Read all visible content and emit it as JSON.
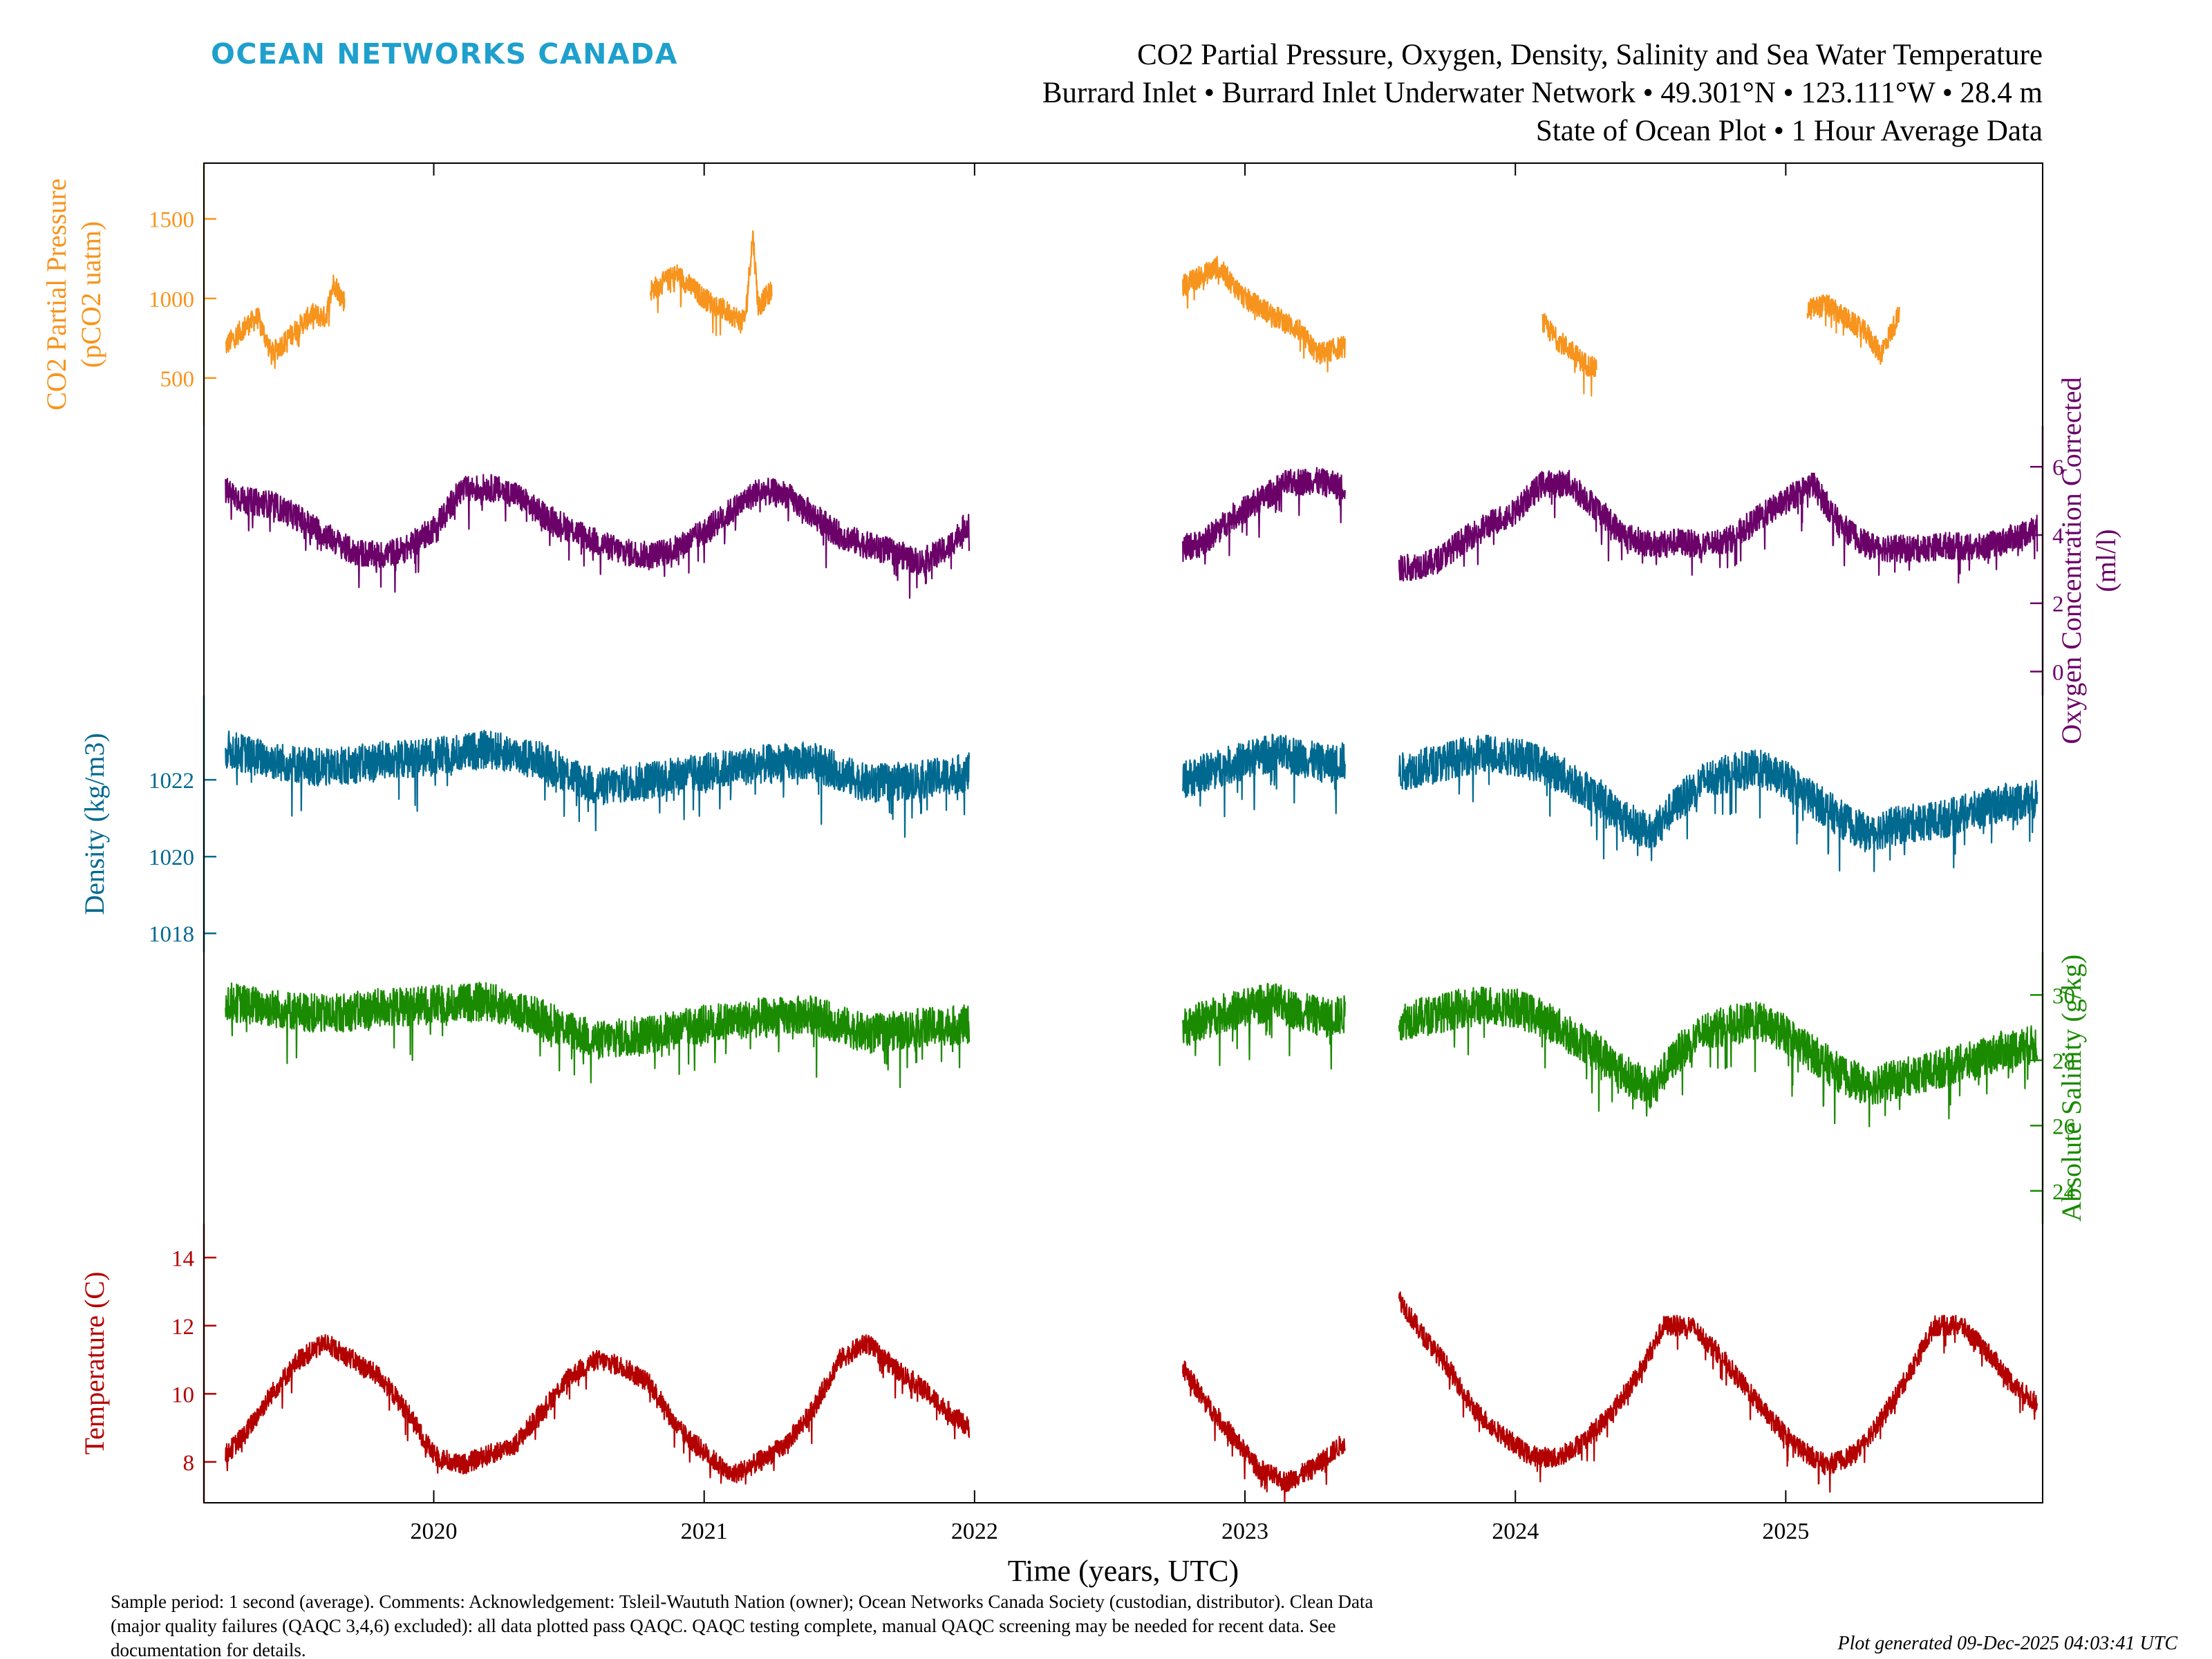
{
  "logo": "OCEAN NETWORKS CANADA",
  "header": {
    "title": "CO2 Partial Pressure, Oxygen, Density, Salinity and Sea Water Temperature",
    "line2": "Burrard Inlet • Burrard Inlet Underwater Network • 49.301°N • 123.111°W • 28.4 m",
    "line3": "State of Ocean Plot • 1 Hour Average Data"
  },
  "footer": {
    "note_line1": "Sample period: 1 second (average). Comments: Acknowledgement: Tsleil-Waututh Nation (owner); Ocean Networks Canada Society (custodian, distributor). Clean Data",
    "note_line2": "(major quality failures (QAQC 3,4,6) excluded): all data plotted pass QAQC. QAQC testing complete, manual QAQC screening may be needed for recent data. See",
    "note_line3": "documentation for details.",
    "generated": "Plot generated 09-Dec-2025 04:03:41 UTC"
  },
  "chart_data": {
    "type": "line",
    "xlabel": "Time (years, UTC)",
    "xlim": [
      2019.15,
      2025.95
    ],
    "xticks": [
      2020,
      2021,
      2022,
      2023,
      2024,
      2025
    ],
    "grid": false,
    "panels": [
      {
        "id": "co2",
        "name": "CO2 Partial Pressure",
        "ylabel_line1": "CO2 Partial Pressure",
        "ylabel_line2": "(pCO2 uatm)",
        "axis_side": "left",
        "color": "#f7941d",
        "ylim": [
          200,
          1850
        ],
        "yticks": [
          500,
          1000,
          1500
        ],
        "noise": 70,
        "segments": [
          {
            "x": [
              2019.23,
              2019.3,
              2019.35,
              2019.4,
              2019.45,
              2019.5,
              2019.55,
              2019.6,
              2019.63,
              2019.67
            ],
            "y": [
              700,
              820,
              880,
              650,
              730,
              820,
              900,
              880,
              1100,
              980
            ]
          },
          {
            "x": [
              2020.8,
              2020.9,
              2021.0,
              2021.1,
              2021.15,
              2021.18,
              2021.2,
              2021.25
            ],
            "y": [
              1050,
              1150,
              1000,
              900,
              850,
              1400,
              950,
              1050
            ]
          },
          {
            "x": [
              2022.77,
              2022.85,
              2022.9,
              2023.0,
              2023.1,
              2023.2,
              2023.27,
              2023.37
            ],
            "y": [
              1080,
              1150,
              1200,
              1000,
              900,
              800,
              650,
              700
            ]
          },
          {
            "x": [
              2024.1,
              2024.15,
              2024.2,
              2024.25,
              2024.3
            ],
            "y": [
              850,
              750,
              680,
              600,
              550
            ]
          },
          {
            "x": [
              2025.08,
              2025.15,
              2025.2,
              2025.3,
              2025.35,
              2025.42
            ],
            "y": [
              930,
              960,
              900,
              780,
              650,
              900
            ]
          }
        ]
      },
      {
        "id": "oxygen",
        "name": "Oxygen Concentration Corrected",
        "ylabel_line1": "Oxygen Concentration Corrected",
        "ylabel_line2": "(ml/l)",
        "axis_side": "right",
        "color": "#6b0069",
        "ylim": [
          -0.7,
          7.2
        ],
        "yticks": [
          0,
          2,
          4,
          6
        ],
        "noise": 0.4,
        "segments": [
          {
            "x": [
              2019.23,
              2019.3,
              2019.4,
              2019.5,
              2019.6,
              2019.7,
              2019.8,
              2019.9,
              2020.0,
              2020.1,
              2020.2,
              2020.3,
              2020.4,
              2020.5,
              2020.6,
              2020.7,
              2020.8,
              2020.9,
              2021.0,
              2021.1,
              2021.2,
              2021.3,
              2021.4,
              2021.5,
              2021.6,
              2021.7,
              2021.8,
              2021.9,
              2021.98
            ],
            "y": [
              5.3,
              5.0,
              4.9,
              4.5,
              4.0,
              3.5,
              3.4,
              3.6,
              4.2,
              5.3,
              5.4,
              5.2,
              4.6,
              4.2,
              3.8,
              3.5,
              3.4,
              3.6,
              4.1,
              4.7,
              5.3,
              5.2,
              4.6,
              4.0,
              3.7,
              3.5,
              3.2,
              3.6,
              4.4
            ]
          },
          {
            "x": [
              2022.77,
              2022.85,
              2022.95,
              2023.05,
              2023.15,
              2023.25,
              2023.37
            ],
            "y": [
              3.6,
              3.8,
              4.5,
              5.0,
              5.5,
              5.6,
              5.4
            ]
          },
          {
            "x": [
              2023.57,
              2023.7,
              2023.8,
              2023.9,
              2024.0,
              2024.1,
              2024.2,
              2024.3,
              2024.4,
              2024.5,
              2024.6,
              2024.7,
              2024.8,
              2024.9,
              2025.0,
              2025.1,
              2025.2,
              2025.3,
              2025.4,
              2025.5,
              2025.6,
              2025.7,
              2025.8,
              2025.93
            ],
            "y": [
              3.0,
              3.2,
              3.8,
              4.3,
              4.7,
              5.5,
              5.5,
              4.8,
              4.0,
              3.7,
              3.8,
              3.7,
              3.9,
              4.5,
              5.0,
              5.5,
              4.3,
              3.7,
              3.6,
              3.6,
              3.7,
              3.6,
              3.8,
              4.2
            ]
          }
        ]
      },
      {
        "id": "density",
        "name": "Density",
        "ylabel_line1": "Density (kg/m3)",
        "ylabel_line2": "",
        "axis_side": "left",
        "color": "#006990",
        "ylim": [
          1017.5,
          1024.2
        ],
        "yticks": [
          1018,
          1020,
          1022
        ],
        "noise": 0.5,
        "segments": [
          {
            "x": [
              2019.23,
              2019.4,
              2019.6,
              2019.8,
              2020.0,
              2020.2,
              2020.4,
              2020.6,
              2020.8,
              2021.0,
              2021.2,
              2021.4,
              2021.6,
              2021.8,
              2021.98
            ],
            "y": [
              1022.8,
              1022.5,
              1022.3,
              1022.5,
              1022.6,
              1022.8,
              1022.5,
              1021.8,
              1022.0,
              1022.2,
              1022.4,
              1022.5,
              1021.9,
              1022.0,
              1022.2
            ]
          },
          {
            "x": [
              2022.77,
              2022.9,
              2023.0,
              2023.1,
              2023.2,
              2023.3,
              2023.37
            ],
            "y": [
              1022.0,
              1022.3,
              1022.5,
              1022.7,
              1022.6,
              1022.4,
              1022.5
            ]
          },
          {
            "x": [
              2023.57,
              2023.7,
              2023.8,
              2023.9,
              2024.0,
              2024.1,
              2024.2,
              2024.3,
              2024.4,
              2024.5,
              2024.6,
              2024.7,
              2024.8,
              2024.9,
              2025.0,
              2025.1,
              2025.2,
              2025.3,
              2025.4,
              2025.5,
              2025.6,
              2025.7,
              2025.8,
              2025.93
            ],
            "y": [
              1022.2,
              1022.4,
              1022.6,
              1022.7,
              1022.6,
              1022.4,
              1022.0,
              1021.6,
              1021.0,
              1020.6,
              1021.4,
              1022.0,
              1022.2,
              1022.3,
              1022.0,
              1021.5,
              1021.0,
              1020.6,
              1020.8,
              1020.9,
              1021.0,
              1021.2,
              1021.4,
              1021.5
            ]
          }
        ]
      },
      {
        "id": "salinity",
        "name": "Absolute Salinity",
        "ylabel_line1": "Absolute Salinity (g/kg)",
        "ylabel_line2": "",
        "axis_side": "right",
        "color": "#1a8a00",
        "ylim": [
          23.0,
          31.3
        ],
        "yticks": [
          24,
          26,
          28,
          30
        ],
        "noise": 0.6,
        "segments": [
          {
            "x": [
              2019.23,
              2019.4,
              2019.6,
              2019.8,
              2020.0,
              2020.2,
              2020.4,
              2020.6,
              2020.8,
              2021.0,
              2021.2,
              2021.4,
              2021.6,
              2021.8,
              2021.98
            ],
            "y": [
              29.8,
              29.6,
              29.4,
              29.6,
              29.7,
              29.8,
              29.3,
              28.6,
              28.8,
              29.1,
              29.3,
              29.4,
              28.8,
              29.0,
              29.1
            ]
          },
          {
            "x": [
              2022.77,
              2022.9,
              2023.0,
              2023.1,
              2023.2,
              2023.3,
              2023.37
            ],
            "y": [
              29.0,
              29.4,
              29.6,
              29.8,
              29.5,
              29.3,
              29.4
            ]
          },
          {
            "x": [
              2023.57,
              2023.7,
              2023.8,
              2023.9,
              2024.0,
              2024.1,
              2024.2,
              2024.3,
              2024.4,
              2024.5,
              2024.6,
              2024.7,
              2024.8,
              2024.9,
              2025.0,
              2025.1,
              2025.2,
              2025.3,
              2025.4,
              2025.5,
              2025.6,
              2025.7,
              2025.8,
              2025.93
            ],
            "y": [
              29.2,
              29.4,
              29.6,
              29.7,
              29.6,
              29.3,
              28.8,
              28.3,
              27.6,
              27.1,
              28.2,
              28.9,
              29.1,
              29.2,
              28.8,
              28.2,
              27.6,
              27.2,
              27.4,
              27.6,
              27.8,
              28.0,
              28.3,
              28.5
            ]
          }
        ]
      },
      {
        "id": "temperature",
        "name": "Temperature",
        "ylabel_line1": "Temperature (C)",
        "ylabel_line2": "",
        "axis_side": "left",
        "color": "#b30000",
        "ylim": [
          6.8,
          15.0
        ],
        "yticks": [
          8,
          10,
          12,
          14
        ],
        "noise": 0.3,
        "segments": [
          {
            "x": [
              2019.23,
              2019.3,
              2019.4,
              2019.5,
              2019.6,
              2019.7,
              2019.8,
              2019.9,
              2020.0,
              2020.1,
              2020.2,
              2020.3,
              2020.4,
              2020.5,
              2020.6,
              2020.7,
              2020.8,
              2020.9,
              2021.0,
              2021.1,
              2021.2,
              2021.3,
              2021.4,
              2021.5,
              2021.6,
              2021.7,
              2021.8,
              2021.9,
              2021.98
            ],
            "y": [
              8.2,
              8.8,
              10.0,
              11.0,
              11.5,
              11.0,
              10.5,
              9.5,
              8.2,
              7.9,
              8.2,
              8.5,
              9.5,
              10.5,
              11.0,
              10.8,
              10.3,
              9.0,
              8.3,
              7.6,
              8.0,
              8.5,
              9.5,
              11.0,
              11.5,
              10.8,
              10.2,
              9.5,
              9.0
            ]
          },
          {
            "x": [
              2022.77,
              2022.85,
              2022.95,
              2023.05,
              2023.15,
              2023.25,
              2023.37
            ],
            "y": [
              10.8,
              9.8,
              8.8,
              7.8,
              7.4,
              7.8,
              8.6
            ]
          },
          {
            "x": [
              2023.57,
              2023.65,
              2023.75,
              2023.85,
              2023.95,
              2024.05,
              2024.15,
              2024.25,
              2024.35,
              2024.45,
              2024.55,
              2024.65,
              2024.75,
              2024.85,
              2024.95,
              2025.05,
              2025.15,
              2025.25,
              2025.35,
              2025.45,
              2025.55,
              2025.65,
              2025.75,
              2025.85,
              2025.93
            ],
            "y": [
              12.8,
              11.8,
              10.8,
              9.5,
              8.8,
              8.2,
              8.1,
              8.6,
              9.4,
              10.5,
              12.0,
              12.0,
              11.2,
              10.2,
              9.2,
              8.4,
              7.9,
              8.2,
              9.2,
              10.5,
              12.0,
              12.0,
              11.2,
              10.2,
              9.7
            ]
          }
        ]
      }
    ]
  }
}
